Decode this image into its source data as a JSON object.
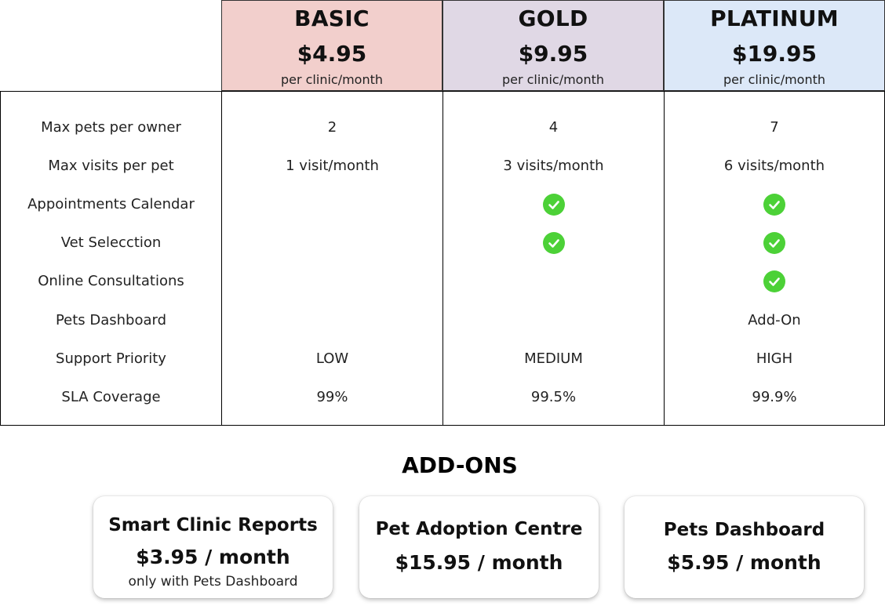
{
  "colors": {
    "basic_bg": "#f2cfcc",
    "gold_bg": "#e0d8e5",
    "platinum_bg": "#dce8f8",
    "check": "#4cd137"
  },
  "plans": [
    {
      "name": "BASIC",
      "price": "$4.95",
      "period": "per clinic/month"
    },
    {
      "name": "GOLD",
      "price": "$9.95",
      "period": "per clinic/month"
    },
    {
      "name": "PLATINUM",
      "price": "$19.95",
      "period": "per clinic/month"
    }
  ],
  "features": [
    "Max pets per owner",
    "Max visits per pet",
    "Appointments Calendar",
    "Vet Selecction",
    "Online Consultations",
    "Pets Dashboard",
    "Support Priority",
    "SLA Coverage"
  ],
  "values": {
    "basic": [
      "2",
      "1 visit/month",
      "",
      "",
      "",
      "",
      "LOW",
      "99%"
    ],
    "gold": [
      "4",
      "3 visits/month",
      "check-icon",
      "check-icon",
      "",
      "",
      "MEDIUM",
      "99.5%"
    ],
    "platinum": [
      "7",
      "6 visits/month",
      "check-icon",
      "check-icon",
      "check-icon",
      "Add-On",
      "HIGH",
      "99.9%"
    ]
  },
  "addons_title": "ADD-ONS",
  "addons": [
    {
      "name": "Smart Clinic Reports",
      "price": "$3.95 / month",
      "note": "only with Pets Dashboard"
    },
    {
      "name": "Pet Adoption Centre",
      "price": "$15.95 / month"
    },
    {
      "name": "Pets Dashboard",
      "price": "$5.95 / month"
    }
  ]
}
